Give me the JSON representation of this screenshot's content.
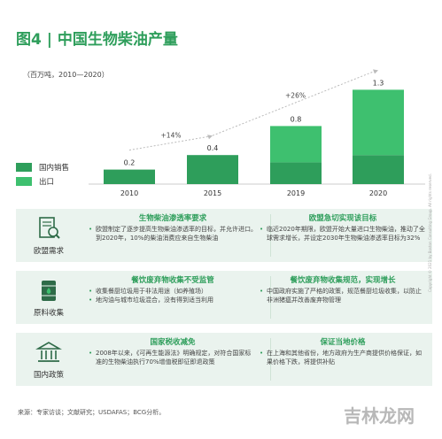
{
  "title": "图4 | 中国生物柴油产量",
  "unit": "（百万吨，2010—2020）",
  "colors": {
    "domestic": "#2e9e5b",
    "export": "#3ec06f",
    "accent": "#2e9e5b"
  },
  "legend": [
    {
      "label": "国内销售",
      "color": "#2e9e5b"
    },
    {
      "label": "出口",
      "color": "#3ec06f"
    }
  ],
  "chart_data": {
    "type": "bar",
    "stacked": true,
    "categories": [
      "2010",
      "2015",
      "2019",
      "2020"
    ],
    "series": [
      {
        "name": "国内销售",
        "values": [
          0.2,
          0.4,
          0.3,
          0.4
        ]
      },
      {
        "name": "出口",
        "values": [
          0.0,
          0.0,
          0.5,
          0.9
        ]
      }
    ],
    "totals": [
      "0.2",
      "0.4",
      "0.8",
      "1.3"
    ],
    "growth_labels": [
      "+14%",
      "+26%"
    ],
    "ylim": [
      0,
      1.3
    ],
    "grid": false
  },
  "panels": [
    {
      "category": "欧盟需求",
      "icon": "magnifier-document-icon",
      "left": {
        "heading": "生物柴油渗透率要求",
        "items": [
          "欧盟制定了逐步提高生物柴油渗透率的目标，并允许进口。到2020年，10%的柴油消费应来自生物柴油"
        ]
      },
      "right": {
        "heading": "欧盟急切实现该目标",
        "items": [
          "临近2020年期限，欧盟开始大量进口生物柴油，推动了全球需求增长，并设定2030年生物柴油渗透率目标为32%"
        ]
      }
    },
    {
      "category": "原料收集",
      "icon": "oil-barrel-icon",
      "left": {
        "heading": "餐饮废弃物收集不受监管",
        "items": [
          "收集餐厨垃圾用于非法用途（如养殖场）",
          "地沟油与城市垃圾混合，没有得到适当利用"
        ]
      },
      "right": {
        "heading": "餐饮废弃物收集规范，实现增长",
        "items": [
          "中国政府实施了严格的政策，规范餐厨垃圾收集，以防止非洲猪瘟并改善废弃物管理"
        ]
      }
    },
    {
      "category": "国内政策",
      "icon": "government-building-icon",
      "left": {
        "heading": "国家税收减免",
        "items": [
          "2008年以来，《可再生能源法》明确规定，对符合国家标准的生物柴油执行70%增值税即征即退政策"
        ]
      },
      "right": {
        "heading": "保证当地价格",
        "items": [
          "在上海和其他省份，地方政府为生产商提供价格保证，如果价格下跌，将提供补贴"
        ]
      }
    }
  ],
  "source": "来源：专家访谈；文献研究；USDAFAS；BCG分析。",
  "copyright": "Copyright © 2021 by Boston Consulting Group. All rights reserved.",
  "watermark": "吉林龙网"
}
